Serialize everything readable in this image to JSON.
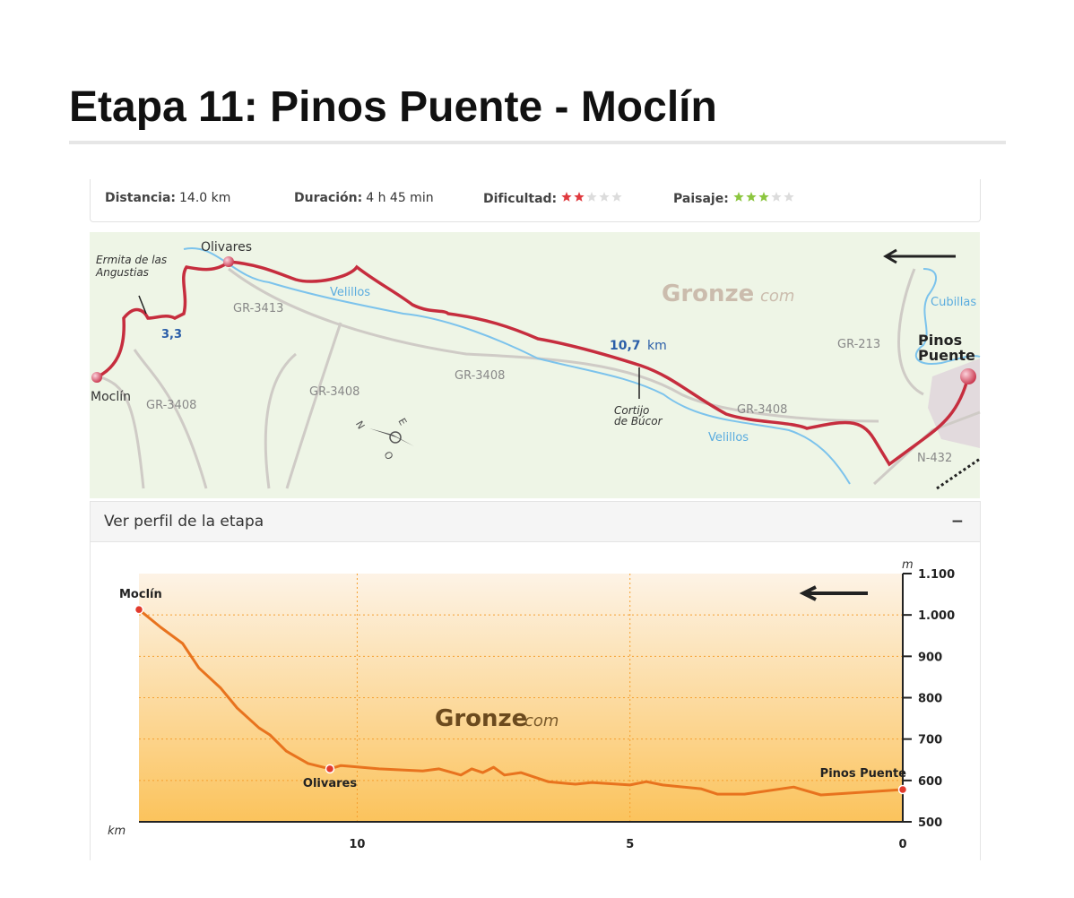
{
  "header": {
    "title": "Etapa 11: Pinos Puente - Moclín"
  },
  "stats": [
    {
      "label": "Distancia:",
      "value": "14.0 km"
    },
    {
      "label": "Duración:",
      "value": "4 h 45 min"
    },
    {
      "label": "Dificultad:",
      "rating": 2,
      "max": 5,
      "color": "#e0393e"
    },
    {
      "label": "Paisaje:",
      "rating": 3,
      "max": 5,
      "color": "#8cc63f"
    }
  ],
  "map": {
    "labels": [
      "Olivares",
      "Ermita de las",
      "Angustias",
      "3,3",
      "Velillos",
      "GR-3413",
      "Gronze",
      "com",
      "Cubillas",
      "GR-213",
      "Pinos",
      "Puente",
      "10,7",
      "km",
      "GR-3408",
      "GR-3408",
      "GR-3408",
      "GR-3408",
      "Cortijo",
      "de Búcor",
      "Moclín",
      "Velillos",
      "N-432",
      "N",
      "E",
      "O"
    ]
  },
  "profile": {
    "toggle_label": "Ver perfil de la etapa",
    "toggle_icon": "−"
  },
  "chart_data": {
    "type": "line",
    "x_label": "km",
    "y_label": "m",
    "watermark": [
      "Gronze",
      "com"
    ],
    "xlim": [
      14,
      0
    ],
    "xticks": [
      10,
      5,
      0
    ],
    "ylim": [
      500,
      1100
    ],
    "yticks": [
      500,
      600,
      700,
      800,
      900,
      {
        "value": 1000,
        "label": "1.000"
      },
      {
        "value": 1100,
        "label": "1.100"
      }
    ],
    "grid": true,
    "x": [
      14,
      13.6,
      13.2,
      12.9,
      12.5,
      12.2,
      11.8,
      11.6,
      11.3,
      10.9,
      10.5,
      10.3,
      9.6,
      8.8,
      8.5,
      8.1,
      7.9,
      7.7,
      7.5,
      7.3,
      7.0,
      6.5,
      6.0,
      5.7,
      5.0,
      4.7,
      4.4,
      3.7,
      3.4,
      2.9,
      2.0,
      1.5,
      0.8,
      0
    ],
    "series": [
      {
        "color": "#e8731e",
        "values": [
          1013,
          970,
          931,
          872,
          823,
          775,
          727,
          710,
          671,
          641,
          628,
          636,
          628,
          623,
          628,
          613,
          628,
          619,
          632,
          613,
          619,
          597,
          591,
          595,
          589,
          597,
          589,
          580,
          567,
          567,
          584,
          565,
          571,
          578
        ]
      }
    ],
    "annotations": [
      {
        "text": "Moclín",
        "x": 14,
        "y": 1013
      },
      {
        "text": "Olivares",
        "x": 10.5,
        "y": 628
      },
      {
        "text": "Pinos Puente",
        "x": 0,
        "y": 578
      }
    ]
  }
}
